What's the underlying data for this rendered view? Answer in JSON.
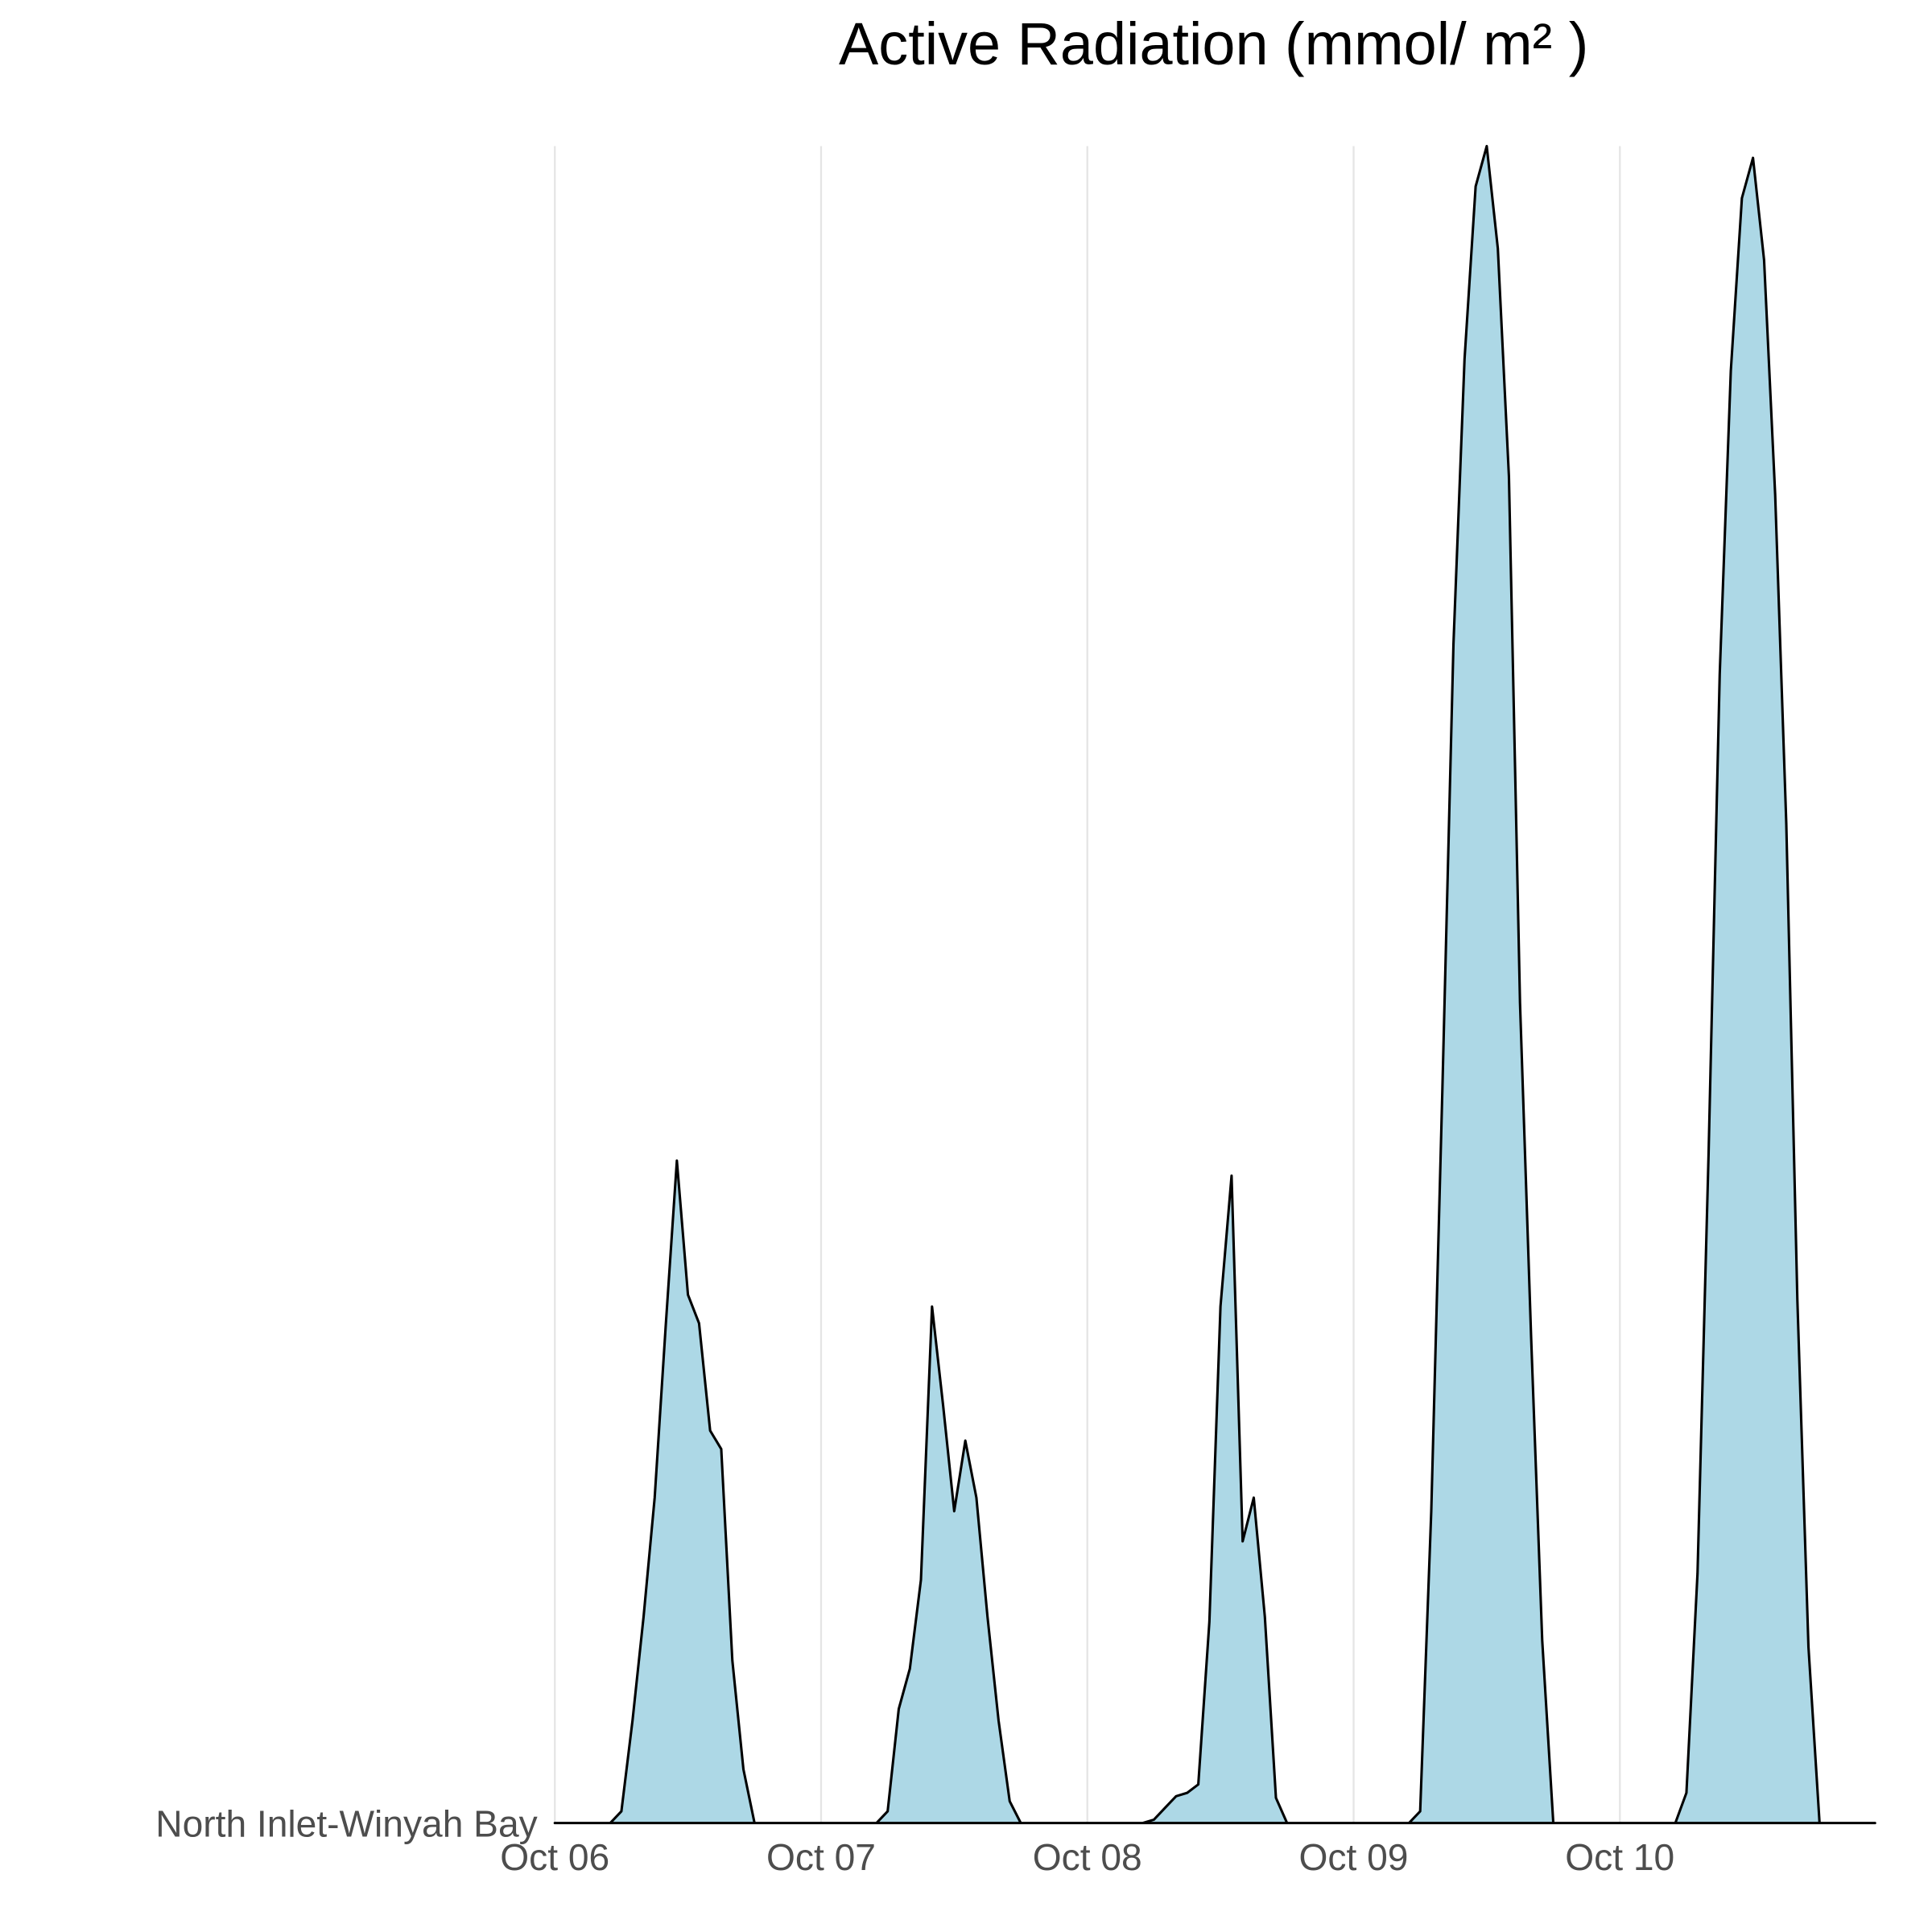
{
  "chart_data": {
    "type": "ridgeline",
    "title": "Active Radiation (mmol/ m² )",
    "categories": [
      "North Inlet-Winyah Bay"
    ],
    "color": "#add8e6",
    "line_color": "#000000",
    "grid": true,
    "x": [
      0,
      1,
      2,
      3,
      4,
      5,
      6,
      7,
      8,
      9,
      10,
      11,
      12,
      13,
      14,
      15,
      16,
      17,
      18,
      19,
      20,
      21,
      22,
      23,
      24,
      25,
      26,
      27,
      28,
      29,
      30,
      31,
      32,
      33,
      34,
      35,
      36,
      37,
      38,
      39,
      40,
      41,
      42,
      43,
      44,
      45,
      46,
      47,
      48,
      49,
      50,
      51,
      52,
      53,
      54,
      55,
      56,
      57,
      58,
      59,
      60,
      61,
      62,
      63,
      64,
      65,
      66,
      67,
      68,
      69,
      70,
      71,
      72,
      73,
      74,
      75,
      76,
      77,
      78,
      79,
      80,
      81,
      82,
      83,
      84,
      85,
      86,
      87,
      88,
      89,
      90,
      91,
      92,
      93,
      94,
      95,
      96,
      97,
      98,
      99,
      100,
      101,
      102,
      103,
      104,
      105,
      106,
      107,
      108,
      109,
      110,
      111,
      112,
      113,
      114,
      115,
      116,
      117,
      118,
      119
    ],
    "values": [
      0,
      0,
      0,
      0,
      0,
      0,
      0.7,
      6.1,
      12.3,
      19.4,
      29.7,
      39.5,
      31.5,
      29.8,
      23.4,
      22.3,
      9.7,
      3.2,
      0,
      0,
      0,
      0,
      0,
      0,
      0,
      0,
      0,
      0,
      0,
      0,
      0.7,
      6.8,
      9.2,
      14.5,
      30.8,
      24.9,
      18.6,
      22.8,
      19.4,
      12.3,
      6.1,
      1.3,
      0,
      0,
      0,
      0,
      0,
      0,
      0,
      0,
      0,
      0,
      0,
      0,
      0.2,
      0.9,
      1.6,
      1.8,
      2.3,
      12.0,
      30.8,
      38.6,
      16.8,
      19.4,
      12.3,
      1.5,
      0,
      0,
      0,
      0,
      0,
      0,
      0,
      0,
      0,
      0,
      0,
      0,
      0.7,
      18.6,
      43.7,
      70.3,
      87.3,
      97.6,
      100,
      93.9,
      80.3,
      48.9,
      29.0,
      10.9,
      0,
      0,
      0,
      0,
      0,
      0,
      0,
      0,
      0,
      0,
      0,
      0,
      1.8,
      14.9,
      40.0,
      68.5,
      86.6,
      96.9,
      99.3,
      93.2,
      79.2,
      59.6,
      31.2,
      10.5,
      0,
      0,
      0,
      0,
      0,
      0
    ],
    "xlim": [
      0,
      119
    ],
    "xticks": [
      {
        "value": 0,
        "label": "Oct 06"
      },
      {
        "value": 24,
        "label": "Oct 07"
      },
      {
        "value": 48,
        "label": "Oct 08"
      },
      {
        "value": 72,
        "label": "Oct 09"
      },
      {
        "value": 96,
        "label": "Oct 10"
      }
    ],
    "ylim": [
      0,
      100
    ]
  }
}
